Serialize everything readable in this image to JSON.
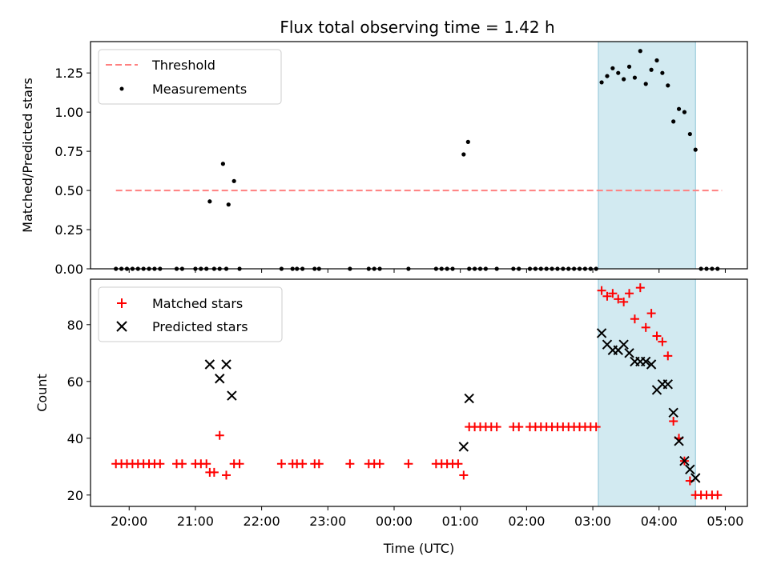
{
  "title": "Flux total observing time = 1.42 h",
  "colors": {
    "threshold": "#ff8080",
    "measurement": "#000000",
    "matched": "#ff0000",
    "predicted": "#000000",
    "observing_span": "#add8e6"
  },
  "chart_data": [
    {
      "type": "scatter",
      "panel": "top",
      "title": "Flux total observing time = 1.42 h",
      "xlabel": "",
      "ylabel": "Matched/Predicted stars",
      "xlim": [
        "19:25",
        "05:20"
      ],
      "ylim": [
        0,
        1.45
      ],
      "x_ticks": [
        "20:00",
        "21:00",
        "22:00",
        "23:00",
        "00:00",
        "01:00",
        "02:00",
        "03:00",
        "04:00",
        "05:00"
      ],
      "y_ticks": [
        "0.00",
        "0.25",
        "0.50",
        "0.75",
        "1.00",
        "1.25"
      ],
      "legend_position": "top-left",
      "shaded_span": {
        "start": "03:05",
        "end": "04:33"
      },
      "threshold": {
        "name": "Threshold",
        "y": 0.5,
        "x_start": "19:48",
        "x_end": "04:57"
      },
      "series": [
        {
          "name": "Measurements",
          "marker": "dot",
          "points": [
            [
              "19:48",
              0
            ],
            [
              "19:53",
              0
            ],
            [
              "19:58",
              0
            ],
            [
              "20:03",
              0
            ],
            [
              "20:08",
              0
            ],
            [
              "20:13",
              0
            ],
            [
              "20:18",
              0
            ],
            [
              "20:23",
              0
            ],
            [
              "20:28",
              0
            ],
            [
              "20:43",
              0
            ],
            [
              "20:48",
              0
            ],
            [
              "21:00",
              0
            ],
            [
              "21:05",
              0
            ],
            [
              "21:10",
              0
            ],
            [
              "21:13",
              0.43
            ],
            [
              "21:17",
              0
            ],
            [
              "21:22",
              0
            ],
            [
              "21:25",
              0.67
            ],
            [
              "21:28",
              0
            ],
            [
              "21:30",
              0.41
            ],
            [
              "21:35",
              0.56
            ],
            [
              "21:40",
              0
            ],
            [
              "22:18",
              0
            ],
            [
              "22:28",
              0
            ],
            [
              "22:32",
              0
            ],
            [
              "22:37",
              0
            ],
            [
              "22:48",
              0
            ],
            [
              "22:52",
              0
            ],
            [
              "23:20",
              0
            ],
            [
              "23:37",
              0
            ],
            [
              "23:42",
              0
            ],
            [
              "23:47",
              0
            ],
            [
              "00:13",
              0
            ],
            [
              "00:38",
              0
            ],
            [
              "00:43",
              0
            ],
            [
              "00:48",
              0
            ],
            [
              "00:53",
              0
            ],
            [
              "01:03",
              0.73
            ],
            [
              "01:07",
              0.81
            ],
            [
              "01:08",
              0
            ],
            [
              "01:13",
              0
            ],
            [
              "01:18",
              0
            ],
            [
              "01:23",
              0
            ],
            [
              "01:33",
              0
            ],
            [
              "01:48",
              0
            ],
            [
              "01:53",
              0
            ],
            [
              "02:03",
              0
            ],
            [
              "02:08",
              0
            ],
            [
              "02:13",
              0
            ],
            [
              "02:18",
              0
            ],
            [
              "02:23",
              0
            ],
            [
              "02:28",
              0
            ],
            [
              "02:33",
              0
            ],
            [
              "02:38",
              0
            ],
            [
              "02:43",
              0
            ],
            [
              "02:48",
              0
            ],
            [
              "02:53",
              0
            ],
            [
              "02:58",
              0
            ],
            [
              "03:03",
              0
            ],
            [
              "03:08",
              1.19
            ],
            [
              "03:13",
              1.23
            ],
            [
              "03:18",
              1.28
            ],
            [
              "03:23",
              1.25
            ],
            [
              "03:28",
              1.21
            ],
            [
              "03:33",
              1.29
            ],
            [
              "03:38",
              1.22
            ],
            [
              "03:43",
              1.39
            ],
            [
              "03:48",
              1.18
            ],
            [
              "03:53",
              1.27
            ],
            [
              "03:58",
              1.33
            ],
            [
              "04:03",
              1.25
            ],
            [
              "04:08",
              1.17
            ],
            [
              "04:13",
              0.94
            ],
            [
              "04:18",
              1.02
            ],
            [
              "04:23",
              1.0
            ],
            [
              "04:28",
              0.86
            ],
            [
              "04:33",
              0.76
            ],
            [
              "04:38",
              0
            ],
            [
              "04:43",
              0
            ],
            [
              "04:48",
              0
            ],
            [
              "04:53",
              0
            ]
          ]
        }
      ]
    },
    {
      "type": "scatter",
      "panel": "bottom",
      "xlabel": "Time (UTC)",
      "ylabel": "Count",
      "xlim": [
        "19:25",
        "05:20"
      ],
      "ylim": [
        16,
        96
      ],
      "x_ticks": [
        "20:00",
        "21:00",
        "22:00",
        "23:00",
        "00:00",
        "01:00",
        "02:00",
        "03:00",
        "04:00",
        "05:00"
      ],
      "y_ticks": [
        "20",
        "40",
        "60",
        "80"
      ],
      "legend_position": "top-left",
      "shaded_span": {
        "start": "03:05",
        "end": "04:33"
      },
      "series": [
        {
          "name": "Matched stars",
          "marker": "plus",
          "points": [
            [
              "19:48",
              31
            ],
            [
              "19:53",
              31
            ],
            [
              "19:58",
              31
            ],
            [
              "20:03",
              31
            ],
            [
              "20:08",
              31
            ],
            [
              "20:13",
              31
            ],
            [
              "20:18",
              31
            ],
            [
              "20:23",
              31
            ],
            [
              "20:28",
              31
            ],
            [
              "20:43",
              31
            ],
            [
              "20:48",
              31
            ],
            [
              "21:00",
              31
            ],
            [
              "21:05",
              31
            ],
            [
              "21:10",
              31
            ],
            [
              "21:13",
              28
            ],
            [
              "21:17",
              28
            ],
            [
              "21:22",
              41
            ],
            [
              "21:28",
              27
            ],
            [
              "21:35",
              31
            ],
            [
              "21:40",
              31
            ],
            [
              "22:18",
              31
            ],
            [
              "22:28",
              31
            ],
            [
              "22:32",
              31
            ],
            [
              "22:37",
              31
            ],
            [
              "22:48",
              31
            ],
            [
              "22:52",
              31
            ],
            [
              "23:20",
              31
            ],
            [
              "23:37",
              31
            ],
            [
              "23:42",
              31
            ],
            [
              "23:47",
              31
            ],
            [
              "00:13",
              31
            ],
            [
              "00:38",
              31
            ],
            [
              "00:43",
              31
            ],
            [
              "00:48",
              31
            ],
            [
              "00:53",
              31
            ],
            [
              "00:58",
              31
            ],
            [
              "01:03",
              27
            ],
            [
              "01:08",
              44
            ],
            [
              "01:13",
              44
            ],
            [
              "01:18",
              44
            ],
            [
              "01:23",
              44
            ],
            [
              "01:28",
              44
            ],
            [
              "01:33",
              44
            ],
            [
              "01:48",
              44
            ],
            [
              "01:53",
              44
            ],
            [
              "02:03",
              44
            ],
            [
              "02:08",
              44
            ],
            [
              "02:13",
              44
            ],
            [
              "02:18",
              44
            ],
            [
              "02:23",
              44
            ],
            [
              "02:28",
              44
            ],
            [
              "02:33",
              44
            ],
            [
              "02:38",
              44
            ],
            [
              "02:43",
              44
            ],
            [
              "02:48",
              44
            ],
            [
              "02:53",
              44
            ],
            [
              "02:58",
              44
            ],
            [
              "03:03",
              44
            ],
            [
              "03:08",
              92
            ],
            [
              "03:13",
              90
            ],
            [
              "03:18",
              91
            ],
            [
              "03:23",
              89
            ],
            [
              "03:28",
              88
            ],
            [
              "03:33",
              91
            ],
            [
              "03:38",
              82
            ],
            [
              "03:43",
              93
            ],
            [
              "03:48",
              79
            ],
            [
              "03:53",
              84
            ],
            [
              "03:58",
              76
            ],
            [
              "04:03",
              74
            ],
            [
              "04:08",
              69
            ],
            [
              "04:13",
              46
            ],
            [
              "04:18",
              40
            ],
            [
              "04:23",
              32
            ],
            [
              "04:28",
              25
            ],
            [
              "04:33",
              20
            ],
            [
              "04:38",
              20
            ],
            [
              "04:43",
              20
            ],
            [
              "04:48",
              20
            ],
            [
              "04:53",
              20
            ]
          ]
        },
        {
          "name": "Predicted stars",
          "marker": "x",
          "points": [
            [
              "21:13",
              66
            ],
            [
              "21:22",
              61
            ],
            [
              "21:28",
              66
            ],
            [
              "21:33",
              55
            ],
            [
              "01:03",
              37
            ],
            [
              "01:08",
              54
            ],
            [
              "03:08",
              77
            ],
            [
              "03:13",
              73
            ],
            [
              "03:18",
              71
            ],
            [
              "03:23",
              71
            ],
            [
              "03:28",
              73
            ],
            [
              "03:33",
              70
            ],
            [
              "03:38",
              67
            ],
            [
              "03:43",
              67
            ],
            [
              "03:48",
              67
            ],
            [
              "03:53",
              66
            ],
            [
              "03:58",
              57
            ],
            [
              "04:03",
              59
            ],
            [
              "04:08",
              59
            ],
            [
              "04:13",
              49
            ],
            [
              "04:18",
              39
            ],
            [
              "04:23",
              32
            ],
            [
              "04:28",
              29
            ],
            [
              "04:33",
              26
            ]
          ]
        }
      ]
    }
  ]
}
